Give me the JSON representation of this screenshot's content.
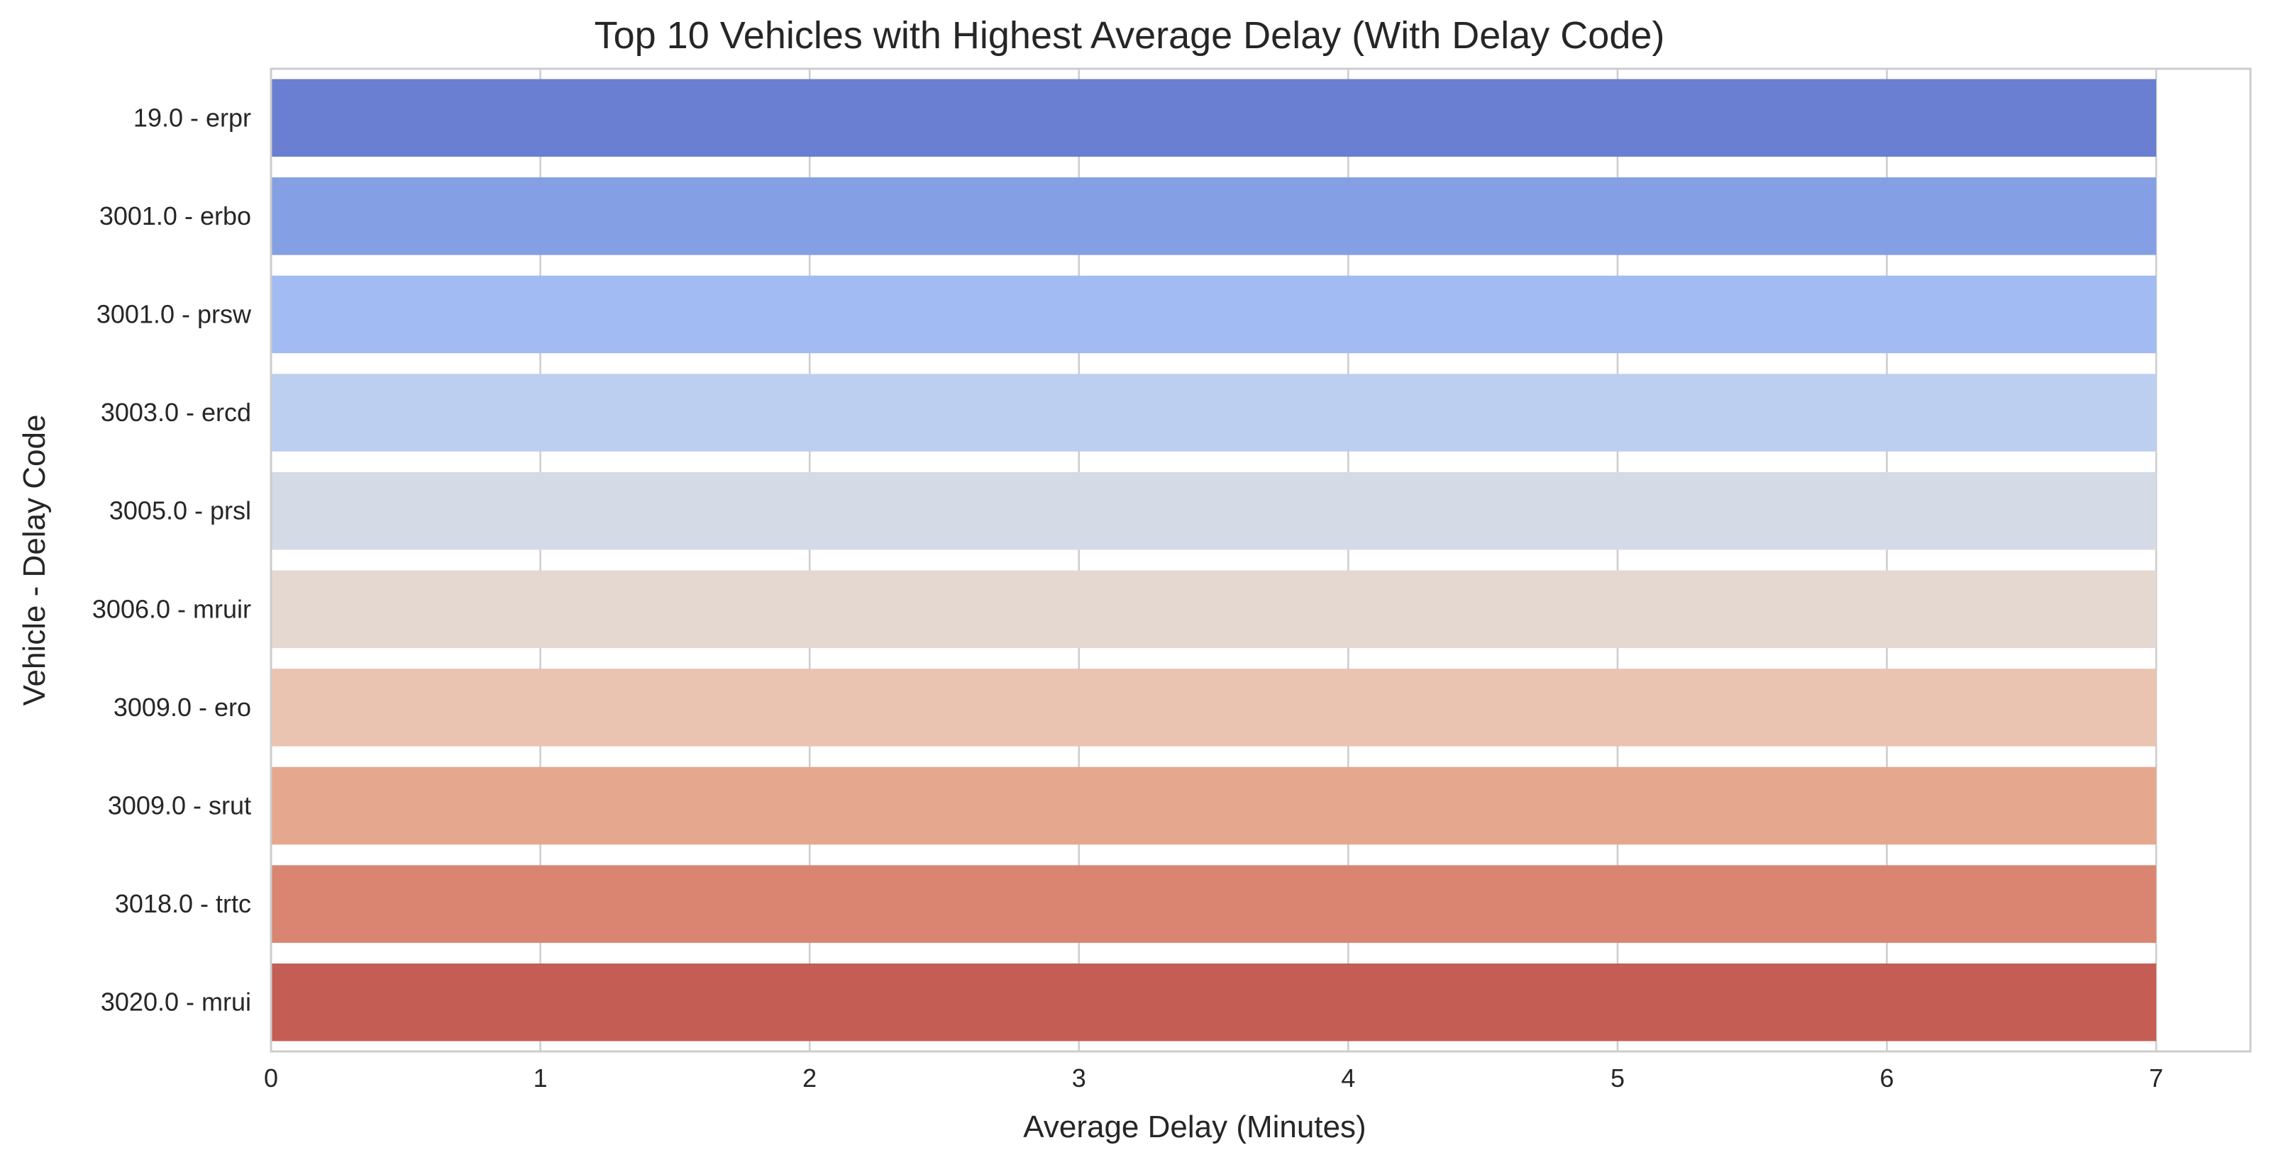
{
  "chart_data": {
    "type": "bar",
    "orientation": "horizontal",
    "title": "Top 10 Vehicles with Highest Average Delay (With Delay Code)",
    "xlabel": "Average Delay (Minutes)",
    "ylabel": "Vehicle - Delay Code",
    "categories": [
      "19.0 - erpr",
      "3001.0 - erbo",
      "3001.0 - prsw",
      "3003.0 - ercd",
      "3005.0 - prsl",
      "3006.0 - mruir",
      "3009.0 - ero",
      "3009.0 - srut",
      "3018.0 - trtc",
      "3020.0 - mrui"
    ],
    "values": [
      7,
      7,
      7,
      7,
      7,
      7,
      7,
      7,
      7,
      7
    ],
    "colors": [
      "#6a7fd1",
      "#849fe4",
      "#a2bbf2",
      "#bccff0",
      "#d4dbe6",
      "#e4d8d0",
      "#ebc4b1",
      "#e6a78f",
      "#d98571",
      "#c45d53"
    ],
    "xticks": [
      0,
      1,
      2,
      3,
      4,
      5,
      6,
      7
    ],
    "xlim": [
      0,
      7.35
    ],
    "grid": "vertical",
    "legend": "none"
  }
}
